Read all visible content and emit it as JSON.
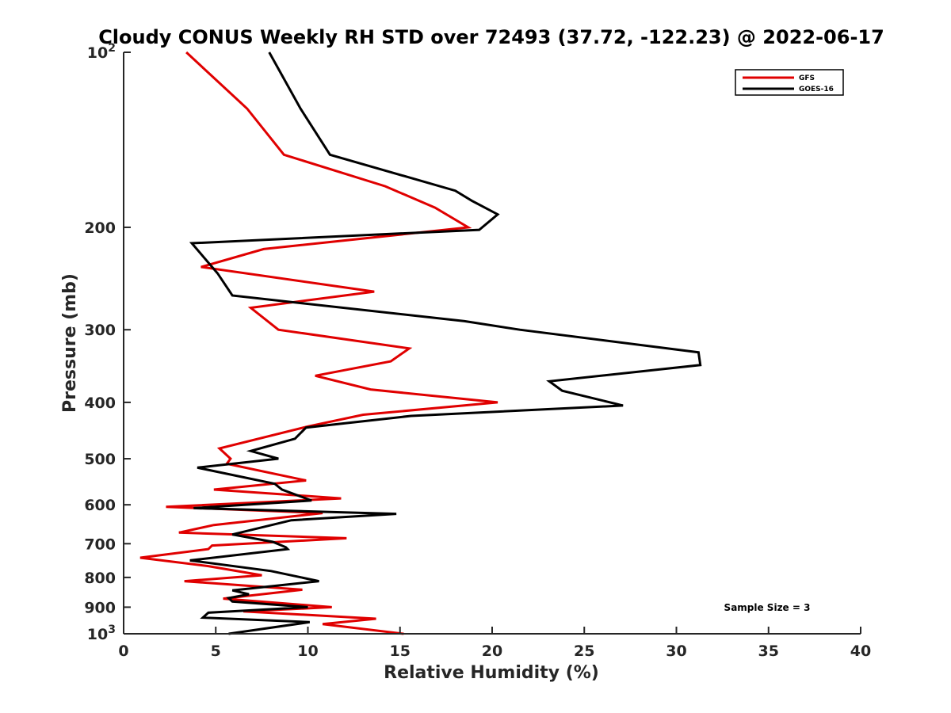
{
  "chart_data": {
    "type": "line",
    "title": "Cloudy CONUS Weekly RH STD over 72493 (37.72, -122.23) @ 2022-06-17",
    "xlabel": "Relative Humidity (%)",
    "ylabel": "Pressure (mb)",
    "xlim": [
      0,
      40
    ],
    "ylim": [
      100,
      1000
    ],
    "y_scale": "log",
    "y_reversed": true,
    "grid": false,
    "legend_position": "top-right",
    "xticks": [
      0,
      5,
      10,
      15,
      20,
      25,
      30,
      35,
      40
    ],
    "yticks": [
      {
        "value": 100,
        "label": "10",
        "exp": "2"
      },
      {
        "value": 200,
        "label": "200"
      },
      {
        "value": 300,
        "label": "300"
      },
      {
        "value": 400,
        "label": "400"
      },
      {
        "value": 500,
        "label": "500"
      },
      {
        "value": 600,
        "label": "600"
      },
      {
        "value": 700,
        "label": "700"
      },
      {
        "value": 800,
        "label": "800"
      },
      {
        "value": 900,
        "label": "900"
      },
      {
        "value": 1000,
        "label": "10",
        "exp": "3"
      }
    ],
    "annotation": "Sample Size = 3",
    "series": [
      {
        "name": "GFS",
        "color": "#e00000",
        "points": [
          [
            3.4,
            100
          ],
          [
            6.7,
            125
          ],
          [
            8.7,
            150
          ],
          [
            14.2,
            170
          ],
          [
            16.9,
            185
          ],
          [
            18.7,
            200
          ],
          [
            7.6,
            218
          ],
          [
            4.2,
            234
          ],
          [
            13.6,
            258
          ],
          [
            6.9,
            275
          ],
          [
            8.4,
            300
          ],
          [
            15.5,
            323
          ],
          [
            14.5,
            340
          ],
          [
            10.4,
            360
          ],
          [
            13.4,
            380
          ],
          [
            20.3,
            400
          ],
          [
            13.0,
            420
          ],
          [
            10.0,
            440
          ],
          [
            5.2,
            480
          ],
          [
            5.8,
            500
          ],
          [
            5.6,
            510
          ],
          [
            9.9,
            545
          ],
          [
            4.9,
            565
          ],
          [
            11.8,
            585
          ],
          [
            2.3,
            605
          ],
          [
            10.8,
            620
          ],
          [
            4.9,
            650
          ],
          [
            3.0,
            670
          ],
          [
            12.1,
            685
          ],
          [
            4.8,
            705
          ],
          [
            4.6,
            715
          ],
          [
            0.9,
            740
          ],
          [
            4.6,
            765
          ],
          [
            7.5,
            793
          ],
          [
            3.3,
            812
          ],
          [
            9.7,
            840
          ],
          [
            5.4,
            870
          ],
          [
            11.3,
            900
          ],
          [
            6.5,
            915
          ],
          [
            13.7,
            942
          ],
          [
            10.8,
            962
          ],
          [
            15.2,
            1000
          ]
        ]
      },
      {
        "name": "GOES-16",
        "color": "#000000",
        "points": [
          [
            7.9,
            100
          ],
          [
            9.6,
            125
          ],
          [
            11.2,
            150
          ],
          [
            18.0,
            173
          ],
          [
            18.9,
            180
          ],
          [
            20.3,
            190
          ],
          [
            19.3,
            202
          ],
          [
            3.7,
            213
          ],
          [
            5.1,
            240
          ],
          [
            5.9,
            262
          ],
          [
            18.5,
            290
          ],
          [
            21.5,
            300
          ],
          [
            31.2,
            328
          ],
          [
            31.3,
            345
          ],
          [
            23.1,
            368
          ],
          [
            23.8,
            382
          ],
          [
            27.1,
            405
          ],
          [
            15.6,
            422
          ],
          [
            9.9,
            442
          ],
          [
            9.3,
            462
          ],
          [
            6.9,
            485
          ],
          [
            8.4,
            500
          ],
          [
            4.0,
            518
          ],
          [
            8.2,
            552
          ],
          [
            8.6,
            565
          ],
          [
            10.2,
            590
          ],
          [
            3.8,
            608
          ],
          [
            14.8,
            622
          ],
          [
            9.1,
            638
          ],
          [
            5.9,
            675
          ],
          [
            8.1,
            695
          ],
          [
            8.8,
            710
          ],
          [
            8.9,
            715
          ],
          [
            3.6,
            748
          ],
          [
            8.0,
            780
          ],
          [
            10.6,
            812
          ],
          [
            5.9,
            842
          ],
          [
            6.8,
            855
          ],
          [
            5.7,
            868
          ],
          [
            5.9,
            880
          ],
          [
            10.0,
            900
          ],
          [
            4.6,
            920
          ],
          [
            4.3,
            938
          ],
          [
            10.1,
            955
          ],
          [
            5.7,
            1000
          ]
        ]
      }
    ]
  }
}
